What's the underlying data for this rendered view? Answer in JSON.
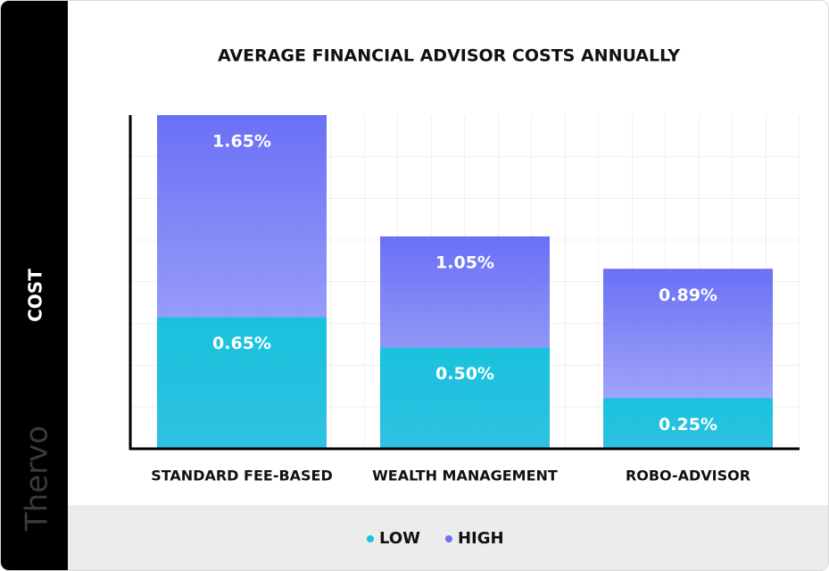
{
  "chart_data": {
    "type": "bar",
    "title": "AVERAGE FINANCIAL ADVISOR COSTS ANNUALLY",
    "y_label": "COST",
    "brand": "Thervo",
    "categories": [
      "STANDARD FEE-BASED",
      "WEALTH MANAGEMENT",
      "ROBO-ADVISOR"
    ],
    "series": [
      {
        "name": "LOW",
        "color": "#19c3dd",
        "values": [
          0.65,
          0.5,
          0.25
        ],
        "value_labels": [
          "0.65%",
          "0.50%",
          "0.25%"
        ]
      },
      {
        "name": "HIGH",
        "color": "#6a70f5",
        "values": [
          1.65,
          1.05,
          0.89
        ],
        "value_labels": [
          "1.65%",
          "1.05%",
          "0.89%"
        ]
      }
    ],
    "ylim": [
      0,
      1.65
    ],
    "grid": true,
    "legend": "bottom"
  }
}
